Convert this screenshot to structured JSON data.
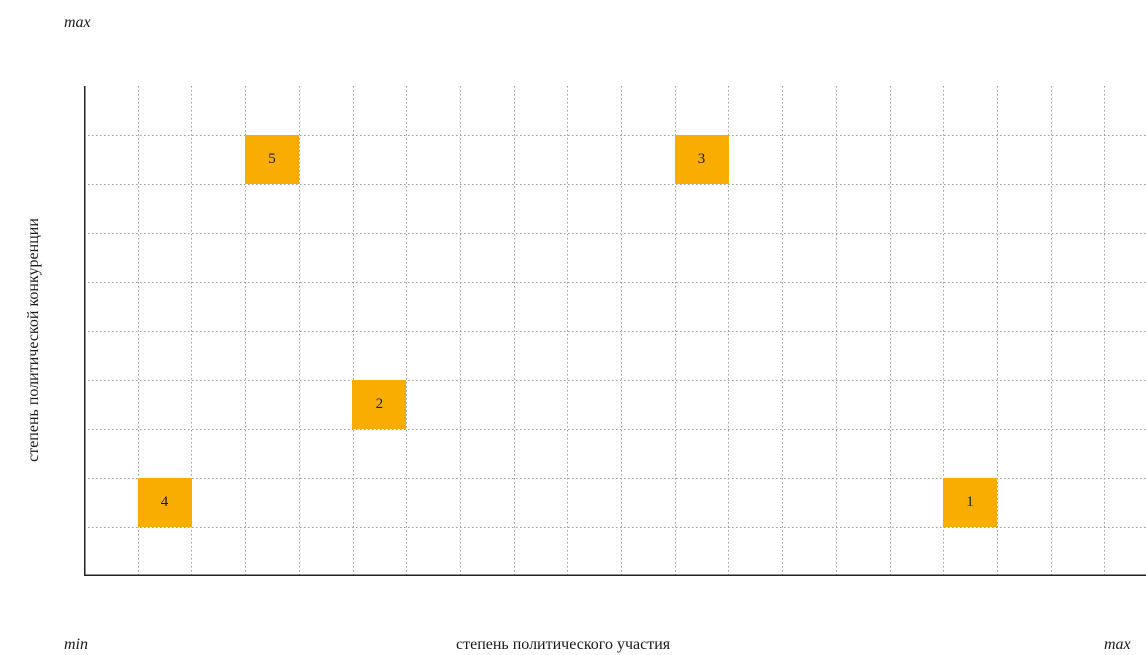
{
  "labels": {
    "y_max": "max",
    "x_min": "min",
    "x_max": "max",
    "x_axis_title": "степень политического участия",
    "y_axis_title": "степень политической конкуренции"
  },
  "chart_data": {
    "type": "scatter",
    "xlabel": "степень политического участия",
    "ylabel": "степень политической конкуренции",
    "axis_end_labels": {
      "x_min": "min",
      "x_max": "max",
      "y_max": "max"
    },
    "grid": true,
    "xlim": [
      0,
      20
    ],
    "ylim": [
      0,
      10
    ],
    "marker_color": "#f9ad00",
    "points": [
      {
        "label": "1",
        "x": 16.5,
        "y": 1.5
      },
      {
        "label": "2",
        "x": 5.5,
        "y": 3.5
      },
      {
        "label": "3",
        "x": 11.5,
        "y": 8.5
      },
      {
        "label": "4",
        "x": 1.5,
        "y": 1.5
      },
      {
        "label": "5",
        "x": 3.5,
        "y": 8.5
      }
    ]
  }
}
